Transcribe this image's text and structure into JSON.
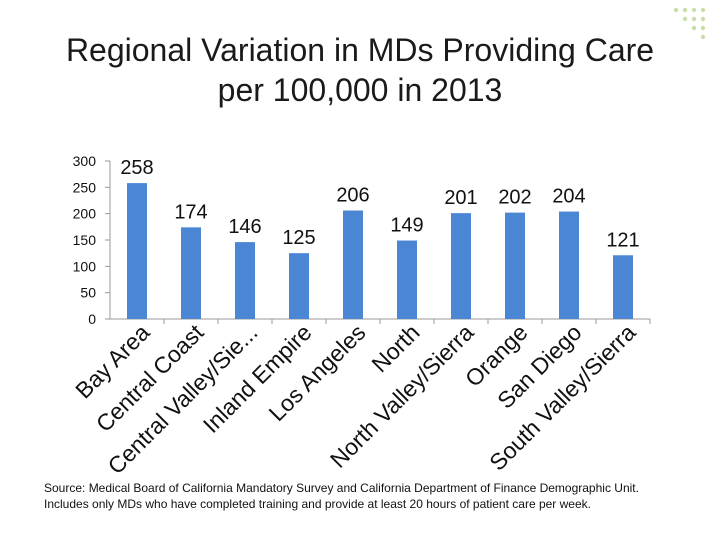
{
  "title": {
    "line1": "Regional Variation in MDs Providing Care",
    "line2": "per 100,000 in 2013"
  },
  "source": "Source: Medical Board of California Mandatory Survey and California Department of Finance Demographic Unit. Includes only MDs who have completed training and provide at least 20 hours of patient care per week.",
  "colors": {
    "bar": "#4a86d4",
    "axis": "#999999",
    "text": "#111111"
  },
  "chart_data": {
    "type": "bar",
    "title": "Regional Variation in MDs Providing Care per 100,000 in 2013",
    "xlabel": "",
    "ylabel": "",
    "ylim": [
      0,
      300
    ],
    "yticks": [
      0,
      50,
      100,
      150,
      200,
      250,
      300
    ],
    "grid": false,
    "categories": [
      "Bay Area",
      "Central Coast",
      "Central Valley/Sie...",
      "Inland Empire",
      "Los Angeles",
      "North",
      "North Valley/Sierra",
      "Orange",
      "San Diego",
      "South Valley/Sierra"
    ],
    "values": [
      258,
      174,
      146,
      125,
      206,
      149,
      201,
      202,
      204,
      121
    ],
    "data_labels": [
      "258",
      "174",
      "146",
      "125",
      "206",
      "149",
      "201",
      "202",
      "204",
      "121"
    ]
  }
}
